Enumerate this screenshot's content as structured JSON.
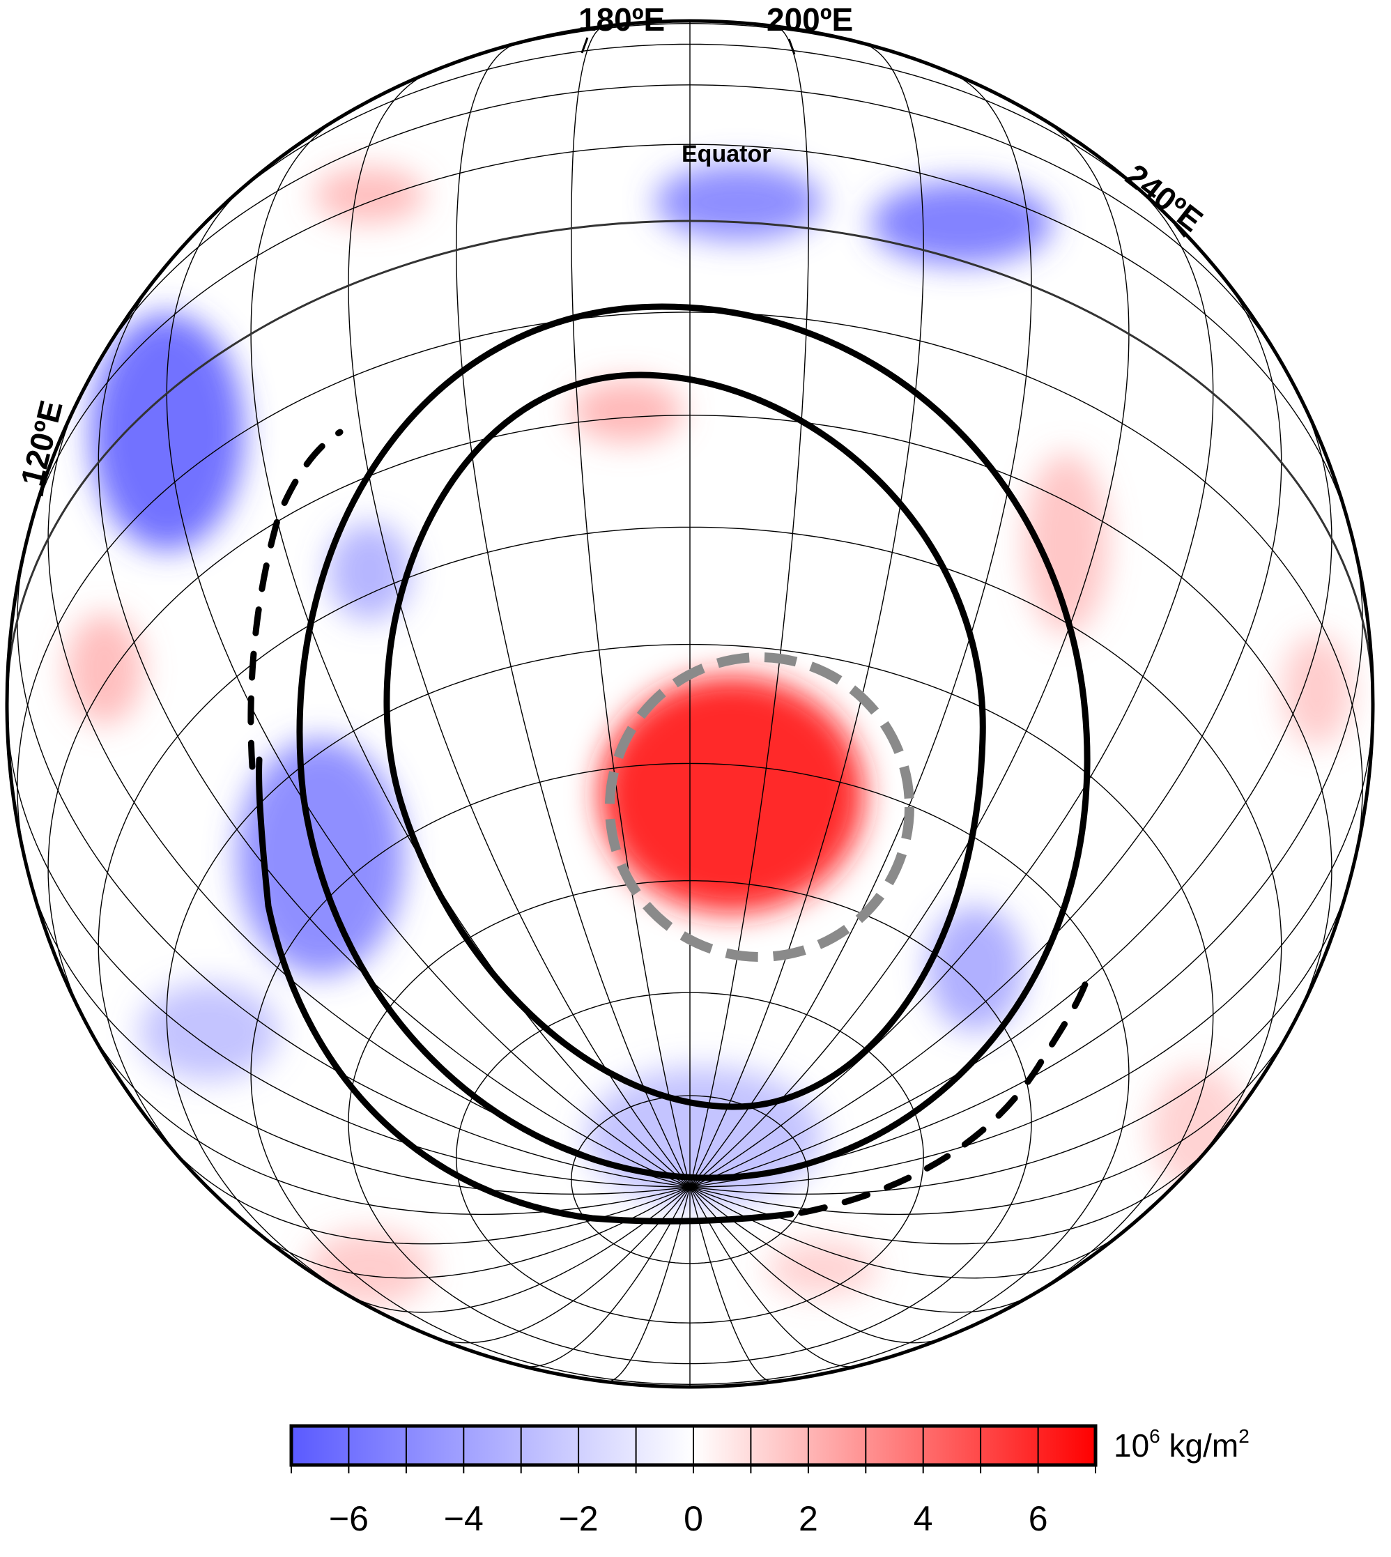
{
  "map": {
    "projection": "orthographic",
    "longitude_labels": [
      "180ºE",
      "200ºE",
      "240ºE",
      "120ºE"
    ],
    "equator_label": "Equator",
    "colors": {
      "positive": "#ff0000",
      "negative": "#4040ff",
      "zero": "#ffffff",
      "graticule": "#000000",
      "boundary": "#000000",
      "dashed_circle": "#8a8a8a"
    }
  },
  "colorbar": {
    "ticks": [
      "−6",
      "−4",
      "−2",
      "0",
      "2",
      "4",
      "6"
    ],
    "range": [
      -7,
      7
    ],
    "unit_base": "10",
    "unit_exp": "6",
    "unit_rest": " kg/m",
    "unit_exp2": "2"
  }
}
